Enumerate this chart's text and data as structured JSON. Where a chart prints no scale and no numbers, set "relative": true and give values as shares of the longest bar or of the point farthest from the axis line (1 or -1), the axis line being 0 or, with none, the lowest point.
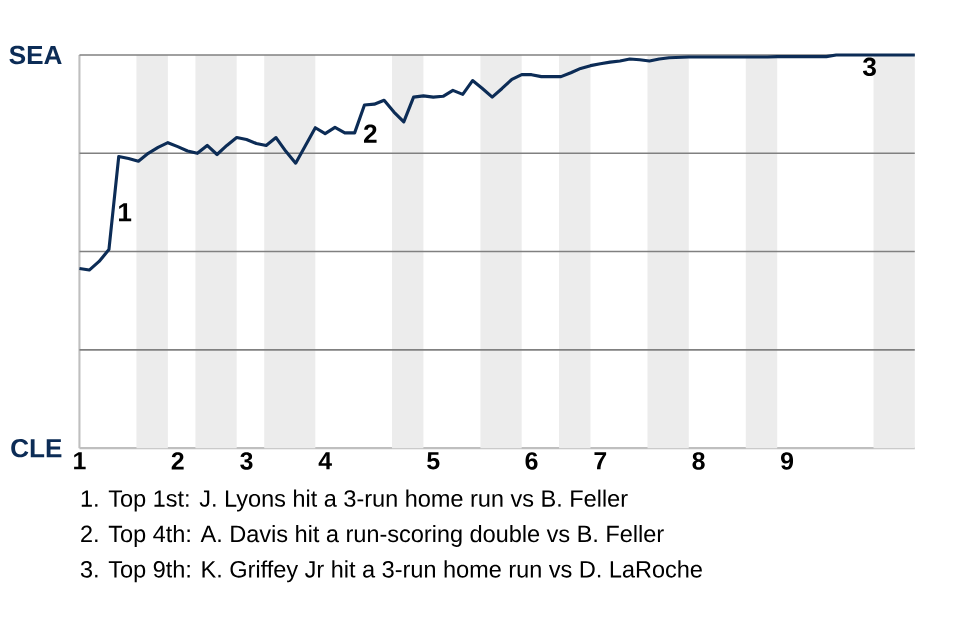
{
  "chart_data": {
    "type": "line",
    "color": "#0c2c56",
    "line_style": "solid",
    "marker": "none",
    "grid": "y",
    "relative": true,
    "categories": [
      "1",
      null,
      null,
      null,
      null,
      null,
      null,
      null,
      null,
      null,
      "2",
      null,
      null,
      null,
      null,
      null,
      null,
      "3",
      null,
      null,
      null,
      null,
      null,
      null,
      null,
      "4",
      null,
      null,
      null,
      null,
      null,
      null,
      null,
      null,
      null,
      null,
      "5",
      null,
      null,
      null,
      null,
      null,
      null,
      null,
      null,
      null,
      "6",
      null,
      null,
      null,
      null,
      null,
      null,
      "7",
      null,
      null,
      null,
      null,
      null,
      null,
      null,
      null,
      null,
      "8",
      null,
      null,
      null,
      null,
      null,
      null,
      null,
      null,
      "9",
      null,
      null,
      null,
      null,
      null,
      null,
      null,
      null,
      null,
      null,
      null,
      null,
      null
    ],
    "values": [
      0.457,
      0.453,
      0.475,
      0.505,
      0.742,
      0.737,
      0.73,
      0.75,
      0.765,
      0.777,
      0.767,
      0.756,
      0.75,
      0.77,
      0.747,
      0.77,
      0.79,
      0.785,
      0.775,
      0.77,
      0.79,
      0.755,
      0.725,
      0.77,
      0.815,
      0.8,
      0.816,
      0.802,
      0.802,
      0.873,
      0.875,
      0.885,
      0.855,
      0.83,
      0.893,
      0.896,
      0.893,
      0.895,
      0.91,
      0.9,
      0.935,
      0.915,
      0.893,
      0.915,
      0.938,
      0.95,
      0.95,
      0.945,
      0.945,
      0.945,
      0.955,
      0.966,
      0.973,
      0.978,
      0.982,
      0.985,
      0.99,
      0.988,
      0.985,
      0.99,
      0.993,
      0.994,
      0.995,
      0.995,
      0.995,
      0.995,
      0.995,
      0.995,
      0.995,
      0.995,
      0.995,
      0.996,
      0.996,
      0.996,
      0.996,
      0.996,
      0.996,
      1,
      1,
      1,
      1,
      1,
      1,
      1,
      1,
      1
    ],
    "annotations": [
      "SEA",
      "CLE",
      "1",
      "2",
      "3",
      "1. Top 1st: J. Lyons hit a 3-run home run vs B. Feller",
      "2. Top 4th: A. Davis hit a run-scoring double vs B. Feller",
      "3. Top 9th: K. Griffey Jr hit a 3-run home run vs D. LaRoche"
    ]
  }
}
